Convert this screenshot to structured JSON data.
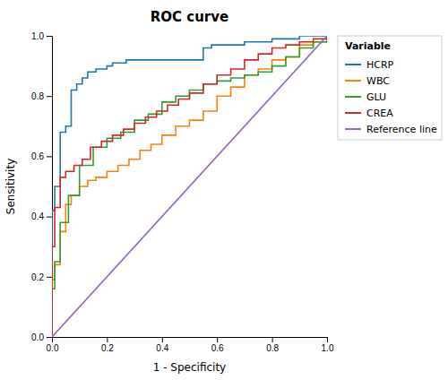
{
  "chart_data": {
    "type": "line",
    "title": "ROC curve",
    "xlabel": "1 - Specificity",
    "ylabel": "Sensitivity",
    "legend_title": "Variable",
    "legend": "right",
    "grid": false,
    "xlim": [
      0.0,
      1.0
    ],
    "ylim": [
      0.0,
      1.0
    ],
    "xticks": [
      {
        "value": 0.0,
        "label": "0.0"
      },
      0.2,
      0.4,
      0.6,
      0.8,
      {
        "value": 1.0,
        "label": "1.0"
      }
    ],
    "yticks": [
      {
        "value": 0.0,
        "label": "0.0"
      },
      0.2,
      0.4,
      0.6,
      0.8,
      {
        "value": 1.0,
        "label": "1.0"
      }
    ],
    "series": [
      {
        "name": "HCRP",
        "line_style": "step",
        "x": [
          0.0,
          0.0,
          0.01,
          0.01,
          0.03,
          0.03,
          0.05,
          0.05,
          0.07,
          0.07,
          0.09,
          0.09,
          0.11,
          0.11,
          0.13,
          0.13,
          0.16,
          0.16,
          0.2,
          0.2,
          0.22,
          0.22,
          0.27,
          0.27,
          0.55,
          0.55,
          0.58,
          0.58,
          0.62,
          0.62,
          0.7,
          0.7,
          0.8,
          0.8,
          0.9,
          0.9,
          0.95,
          0.95,
          1.0
        ],
        "values": [
          0.0,
          0.42,
          0.42,
          0.5,
          0.5,
          0.68,
          0.68,
          0.7,
          0.7,
          0.82,
          0.82,
          0.84,
          0.84,
          0.86,
          0.86,
          0.88,
          0.88,
          0.89,
          0.89,
          0.9,
          0.9,
          0.91,
          0.91,
          0.92,
          0.92,
          0.96,
          0.96,
          0.97,
          0.97,
          0.97,
          0.97,
          0.98,
          0.98,
          0.99,
          0.99,
          1.0,
          1.0,
          1.0,
          1.0
        ]
      },
      {
        "name": "WBC",
        "line_style": "step",
        "x": [
          0.0,
          0.0,
          0.01,
          0.01,
          0.03,
          0.03,
          0.05,
          0.05,
          0.07,
          0.07,
          0.1,
          0.1,
          0.13,
          0.13,
          0.16,
          0.16,
          0.2,
          0.2,
          0.24,
          0.24,
          0.28,
          0.28,
          0.32,
          0.32,
          0.36,
          0.36,
          0.4,
          0.4,
          0.45,
          0.45,
          0.5,
          0.5,
          0.55,
          0.55,
          0.6,
          0.6,
          0.65,
          0.65,
          0.7,
          0.7,
          0.75,
          0.75,
          0.8,
          0.8,
          0.85,
          0.85,
          0.9,
          0.9,
          0.95,
          0.95,
          1.0
        ],
        "values": [
          0.0,
          0.19,
          0.19,
          0.24,
          0.24,
          0.35,
          0.35,
          0.44,
          0.44,
          0.47,
          0.47,
          0.5,
          0.5,
          0.52,
          0.52,
          0.53,
          0.53,
          0.55,
          0.55,
          0.57,
          0.57,
          0.59,
          0.59,
          0.62,
          0.62,
          0.64,
          0.64,
          0.67,
          0.67,
          0.7,
          0.7,
          0.72,
          0.72,
          0.75,
          0.75,
          0.8,
          0.8,
          0.83,
          0.83,
          0.87,
          0.87,
          0.89,
          0.89,
          0.92,
          0.92,
          0.93,
          0.93,
          0.97,
          0.97,
          0.98,
          1.0
        ]
      },
      {
        "name": "GLU",
        "line_style": "step",
        "x": [
          0.0,
          0.0,
          0.01,
          0.01,
          0.03,
          0.03,
          0.06,
          0.06,
          0.1,
          0.1,
          0.15,
          0.15,
          0.2,
          0.2,
          0.25,
          0.25,
          0.3,
          0.3,
          0.35,
          0.35,
          0.4,
          0.4,
          0.45,
          0.45,
          0.5,
          0.5,
          0.55,
          0.55,
          0.6,
          0.6,
          0.65,
          0.65,
          0.7,
          0.7,
          0.75,
          0.75,
          0.8,
          0.8,
          0.85,
          0.85,
          0.9,
          0.9,
          0.95,
          0.95,
          1.0
        ],
        "values": [
          0.0,
          0.16,
          0.16,
          0.25,
          0.25,
          0.38,
          0.38,
          0.47,
          0.47,
          0.57,
          0.57,
          0.63,
          0.63,
          0.66,
          0.66,
          0.68,
          0.68,
          0.72,
          0.72,
          0.74,
          0.74,
          0.78,
          0.78,
          0.8,
          0.8,
          0.82,
          0.82,
          0.84,
          0.84,
          0.85,
          0.85,
          0.86,
          0.86,
          0.87,
          0.87,
          0.88,
          0.88,
          0.9,
          0.9,
          0.93,
          0.93,
          0.96,
          0.96,
          0.98,
          1.0
        ]
      },
      {
        "name": "CREA",
        "line_style": "step",
        "x": [
          0.0,
          0.0,
          0.01,
          0.01,
          0.03,
          0.03,
          0.05,
          0.05,
          0.08,
          0.08,
          0.11,
          0.11,
          0.14,
          0.14,
          0.18,
          0.18,
          0.22,
          0.22,
          0.26,
          0.26,
          0.3,
          0.3,
          0.34,
          0.34,
          0.38,
          0.38,
          0.42,
          0.42,
          0.46,
          0.46,
          0.5,
          0.5,
          0.55,
          0.55,
          0.6,
          0.6,
          0.65,
          0.65,
          0.7,
          0.7,
          0.75,
          0.75,
          0.8,
          0.8,
          0.85,
          0.85,
          0.9,
          0.9,
          0.95,
          0.95,
          1.0
        ],
        "values": [
          0.0,
          0.3,
          0.3,
          0.43,
          0.43,
          0.53,
          0.53,
          0.55,
          0.55,
          0.57,
          0.57,
          0.59,
          0.59,
          0.63,
          0.63,
          0.65,
          0.65,
          0.67,
          0.67,
          0.69,
          0.69,
          0.71,
          0.71,
          0.73,
          0.73,
          0.75,
          0.75,
          0.77,
          0.77,
          0.79,
          0.79,
          0.81,
          0.81,
          0.84,
          0.84,
          0.87,
          0.87,
          0.89,
          0.89,
          0.92,
          0.92,
          0.94,
          0.94,
          0.96,
          0.96,
          0.97,
          0.97,
          0.98,
          0.98,
          0.99,
          1.0
        ]
      },
      {
        "name": "Reference line",
        "x": [
          0,
          1
        ],
        "values": [
          0,
          1
        ]
      }
    ]
  }
}
